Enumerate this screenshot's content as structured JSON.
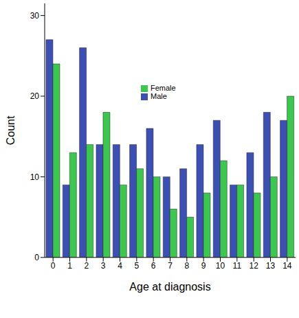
{
  "chart_data": {
    "type": "bar",
    "x_label": "Age at diagnosis",
    "y_label": "Count",
    "categories": [
      "0",
      "1",
      "2",
      "3",
      "4",
      "5",
      "6",
      "7",
      "8",
      "9",
      "10",
      "11",
      "12",
      "13",
      "14"
    ],
    "series": [
      {
        "name": "Male",
        "color": "#3b4fb5",
        "values": [
          27,
          9,
          26,
          14,
          14,
          14,
          16,
          10,
          11,
          14,
          17,
          9,
          13,
          18,
          17
        ]
      },
      {
        "name": "Female",
        "color": "#3cc84e",
        "values": [
          24,
          13,
          14,
          18,
          9,
          11,
          10,
          6,
          5,
          8,
          12,
          9,
          8,
          10,
          20
        ]
      }
    ],
    "ylim": [
      0,
      31.5
    ],
    "yticks": [
      0,
      10,
      20,
      30
    ],
    "grid": false,
    "legend": "top"
  }
}
